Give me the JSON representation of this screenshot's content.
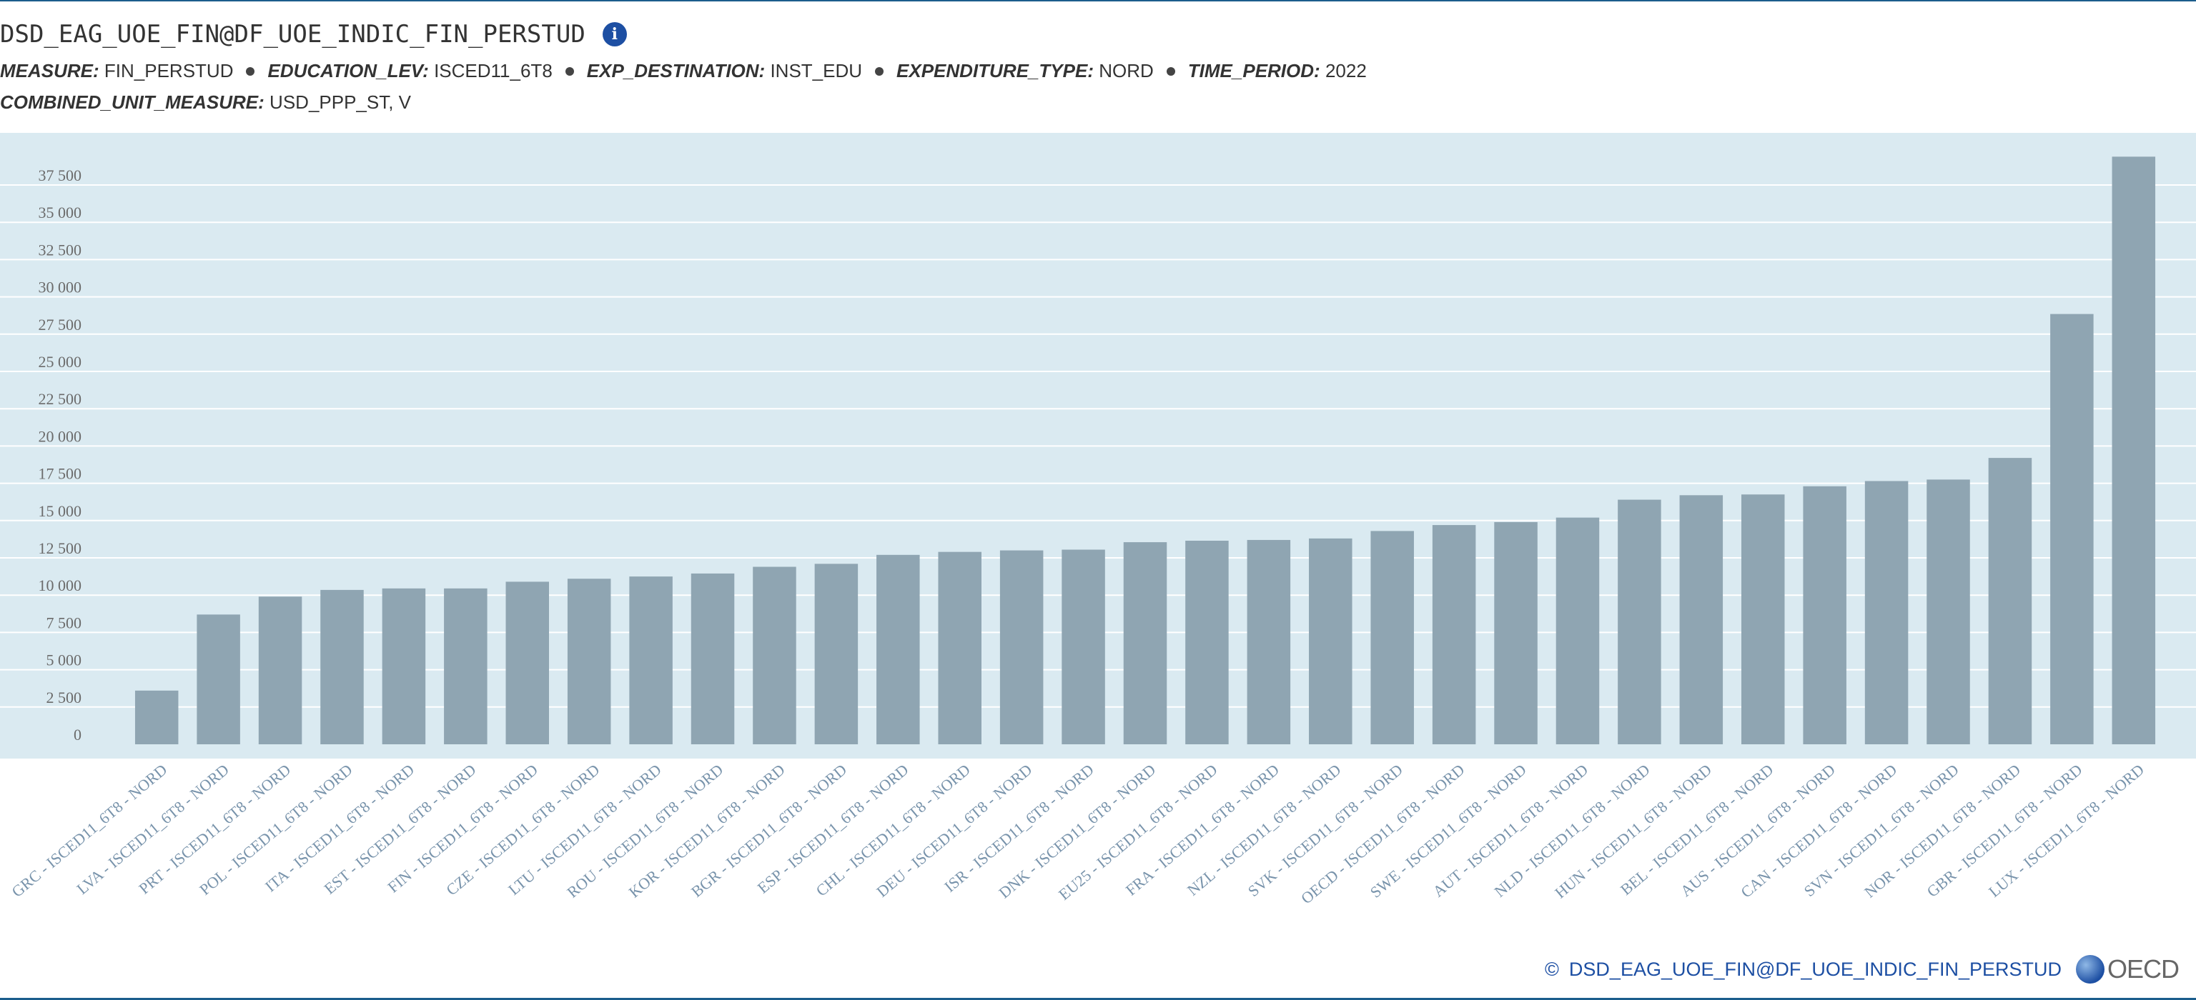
{
  "header": {
    "title": "DSD_EAG_UOE_FIN@DF_UOE_INDIC_FIN_PERSTUD",
    "info_icon": "info-icon",
    "filters_line1": [
      {
        "key": "MEASURE:",
        "value": "FIN_PERSTUD"
      },
      {
        "key": "EDUCATION_LEV:",
        "value": "ISCED11_6T8"
      },
      {
        "key": "EXP_DESTINATION:",
        "value": "INST_EDU"
      },
      {
        "key": "EXPENDITURE_TYPE:",
        "value": "NORD"
      },
      {
        "key": "TIME_PERIOD:",
        "value": "2022"
      }
    ],
    "filters_line2": [
      {
        "key": "COMBINED_UNIT_MEASURE:",
        "value": "USD_PPP_ST, V"
      }
    ]
  },
  "footer": {
    "copyright_symbol": "©",
    "source": "DSD_EAG_UOE_FIN@DF_UOE_INDIC_FIN_PERSTUD",
    "logo_text": "OECD",
    "logo_icon": "globe-icon"
  },
  "colors": {
    "bar": "#8fa5b2",
    "plot_bg": "#daeaf1",
    "gridline": "#ffffff",
    "tick_text": "#6b6b6b",
    "category_text": "#7893ab",
    "accent": "#1d4fa3"
  },
  "chart_data": {
    "type": "bar",
    "title": "",
    "xlabel": "",
    "ylabel": "",
    "ylim": [
      0,
      40000
    ],
    "grid": true,
    "yticks": [
      0,
      2500,
      5000,
      7500,
      10000,
      12500,
      15000,
      17500,
      20000,
      22500,
      25000,
      27500,
      30000,
      32500,
      35000,
      37500
    ],
    "ytick_labels": [
      "0",
      "2 500",
      "5 000",
      "7 500",
      "10 000",
      "12 500",
      "15 000",
      "17 500",
      "20 000",
      "22 500",
      "25 000",
      "27 500",
      "30 000",
      "32 500",
      "35 000",
      "37 500"
    ],
    "categories": [
      "GRC - ISCED11_6T8 - NORD",
      "LVA - ISCED11_6T8 - NORD",
      "PRT - ISCED11_6T8 - NORD",
      "POL - ISCED11_6T8 - NORD",
      "ITA - ISCED11_6T8 - NORD",
      "EST - ISCED11_6T8 - NORD",
      "FIN - ISCED11_6T8 - NORD",
      "CZE - ISCED11_6T8 - NORD",
      "LTU - ISCED11_6T8 - NORD",
      "ROU - ISCED11_6T8 - NORD",
      "KOR - ISCED11_6T8 - NORD",
      "BGR - ISCED11_6T8 - NORD",
      "ESP - ISCED11_6T8 - NORD",
      "CHL - ISCED11_6T8 - NORD",
      "DEU - ISCED11_6T8 - NORD",
      "ISR - ISCED11_6T8 - NORD",
      "DNK - ISCED11_6T8 - NORD",
      "EU25 - ISCED11_6T8 - NORD",
      "FRA - ISCED11_6T8 - NORD",
      "NZL - ISCED11_6T8 - NORD",
      "SVK - ISCED11_6T8 - NORD",
      "OECD - ISCED11_6T8 - NORD",
      "SWE - ISCED11_6T8 - NORD",
      "AUT - ISCED11_6T8 - NORD",
      "NLD - ISCED11_6T8 - NORD",
      "HUN - ISCED11_6T8 - NORD",
      "BEL - ISCED11_6T8 - NORD",
      "AUS - ISCED11_6T8 - NORD",
      "CAN - ISCED11_6T8 - NORD",
      "SVN - ISCED11_6T8 - NORD",
      "NOR - ISCED11_6T8 - NORD",
      "GBR - ISCED11_6T8 - NORD",
      "LUX - ISCED11_6T8 - NORD"
    ],
    "values": [
      3600,
      8700,
      9900,
      10350,
      10450,
      10450,
      10900,
      11100,
      11250,
      11450,
      11900,
      12100,
      12700,
      12900,
      13000,
      13050,
      13550,
      13650,
      13700,
      13800,
      14300,
      14700,
      14900,
      15200,
      16400,
      16700,
      16750,
      17300,
      17650,
      17750,
      19200,
      28850,
      39400
    ]
  }
}
